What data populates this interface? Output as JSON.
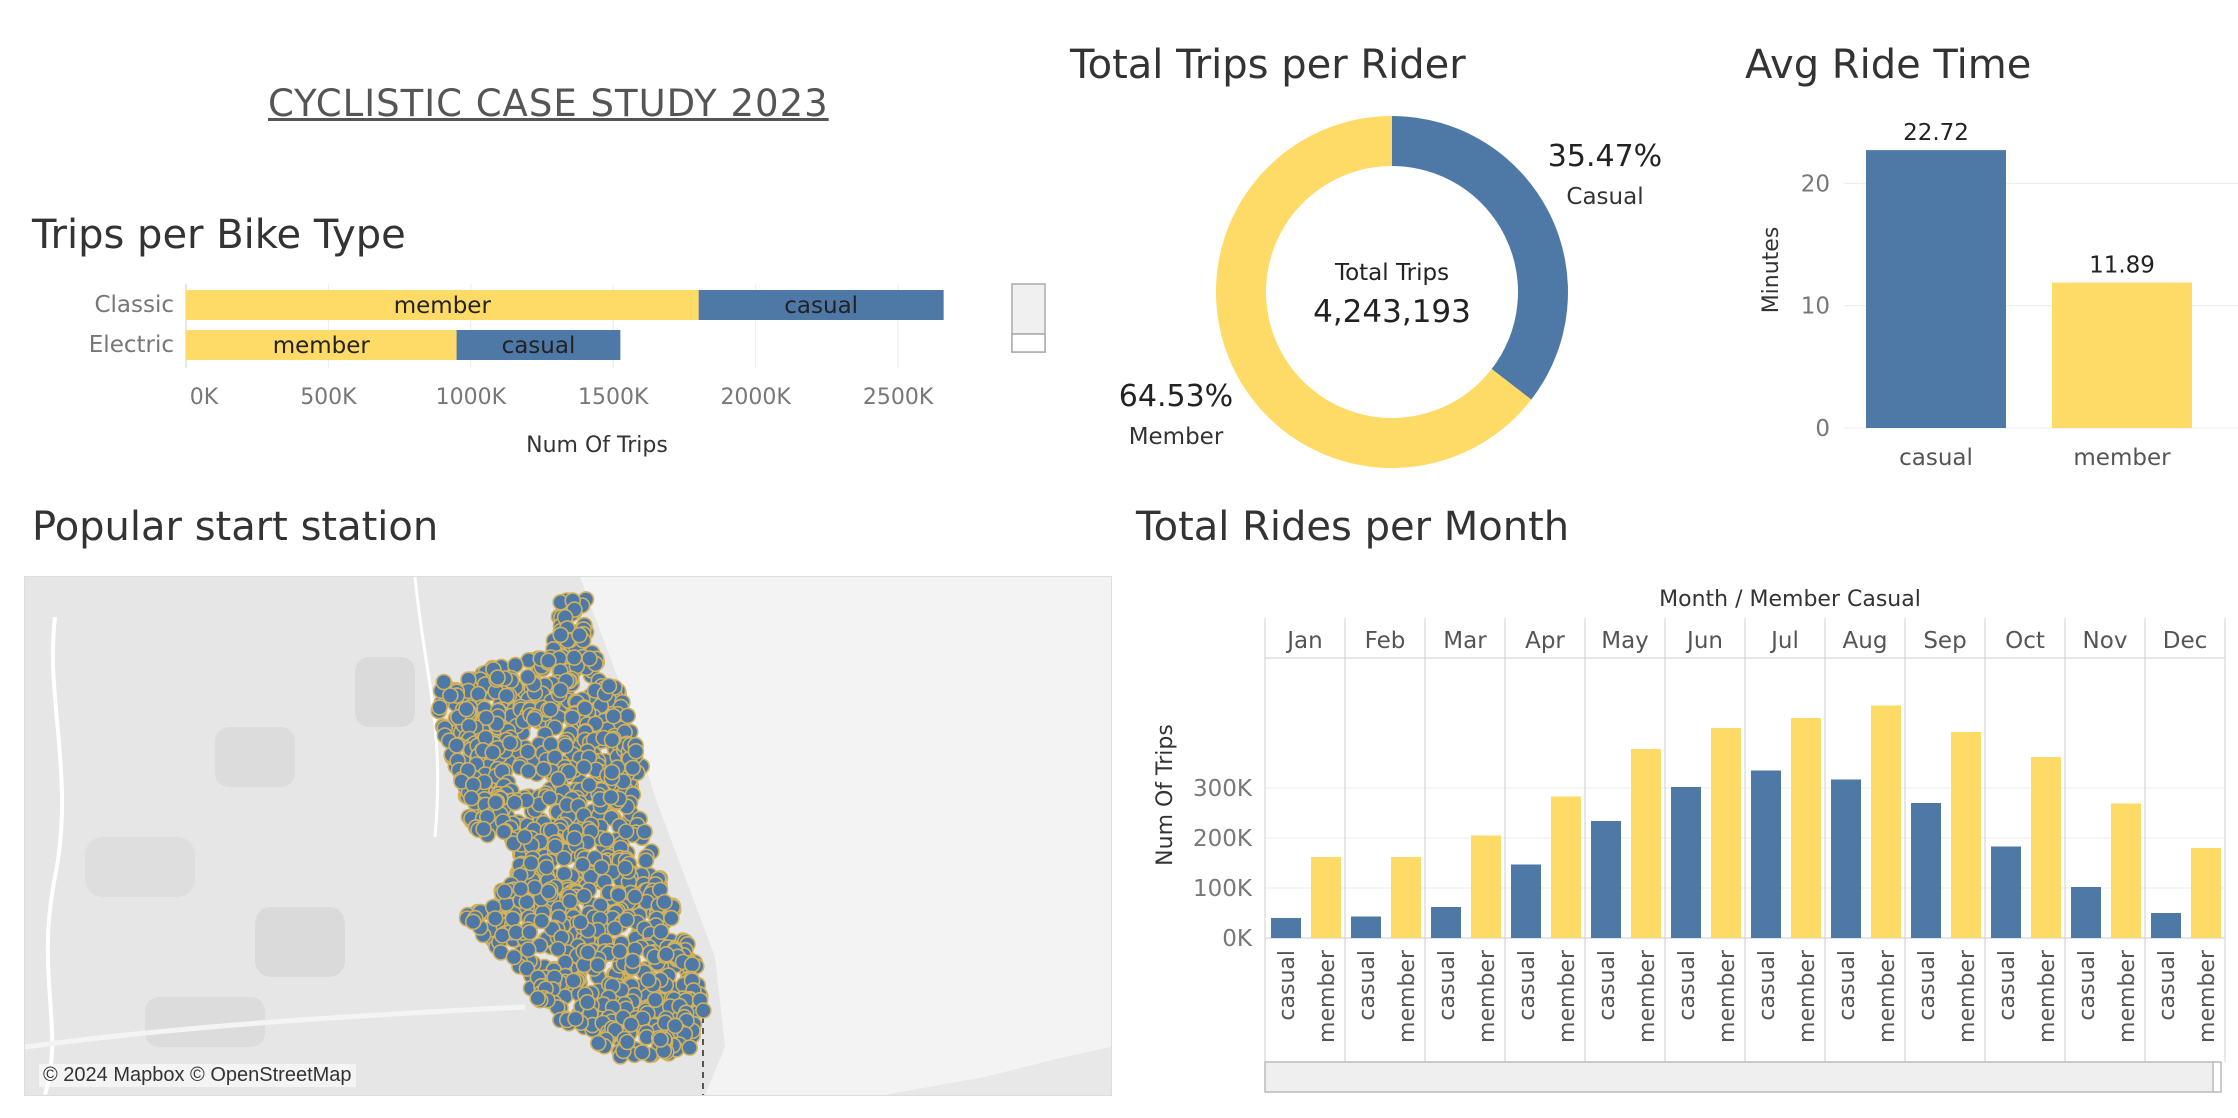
{
  "page_title": "CYCLISTIC CASE STUDY 2023",
  "colors": {
    "member": "#FEDA67",
    "casual": "#4E79A7",
    "grid": "#ececec",
    "axis": "#777777"
  },
  "chart_data": [
    {
      "type": "bar",
      "orientation": "horizontal-stacked",
      "title": "Trips per Bike Type",
      "categories": [
        "Classic",
        "Electric"
      ],
      "series": [
        {
          "name": "member",
          "values": [
            1800000,
            950000
          ]
        },
        {
          "name": "casual",
          "values": [
            860000,
            575000
          ]
        }
      ],
      "xlabel": "Num Of Trips",
      "ylabel": "",
      "xlim": [
        0,
        2900000
      ],
      "ticks": [
        "0K",
        "500K",
        "1000K",
        "1500K",
        "2000K",
        "2500K"
      ],
      "tick_values": [
        0,
        500000,
        1000000,
        1500000,
        2000000,
        2500000
      ]
    },
    {
      "type": "pie",
      "title": "Total Trips per Rider",
      "center_label": "Total Trips",
      "center_value": "4,243,193",
      "slices": [
        {
          "label": "Casual",
          "value": 35.47,
          "display": "35.47%"
        },
        {
          "label": "Member",
          "value": 64.53,
          "display": "64.53%"
        }
      ]
    },
    {
      "type": "bar",
      "title": "Avg Ride Time",
      "categories": [
        "casual",
        "member"
      ],
      "values": [
        22.72,
        11.89
      ],
      "value_labels": [
        "22.72",
        "11.89"
      ],
      "ylabel": "Minutes",
      "ylim": [
        0,
        26
      ],
      "ticks": [
        "0",
        "10",
        "20"
      ],
      "tick_values": [
        0,
        10,
        20
      ]
    },
    {
      "type": "bar",
      "title": "Total Rides per Month",
      "header": "Month / Member Casual",
      "categories": [
        "Jan",
        "Feb",
        "Mar",
        "Apr",
        "May",
        "Jun",
        "Jul",
        "Aug",
        "Sep",
        "Oct",
        "Nov",
        "Dec"
      ],
      "sub_categories": [
        "casual",
        "member"
      ],
      "series": [
        {
          "name": "casual",
          "values": [
            40000,
            43000,
            62000,
            147000,
            234000,
            302000,
            335000,
            317000,
            270000,
            183000,
            102000,
            50000
          ]
        },
        {
          "name": "member",
          "values": [
            162000,
            162000,
            205000,
            283000,
            378000,
            420000,
            440000,
            465000,
            412000,
            362000,
            269000,
            180000
          ]
        }
      ],
      "ylabel": "Num Of Trips",
      "ylim": [
        0,
        560000
      ],
      "ticks": [
        "0K",
        "100K",
        "200K",
        "300K"
      ],
      "tick_values": [
        0,
        100000,
        200000,
        300000
      ]
    }
  ],
  "map": {
    "title": "Popular start station",
    "attribution": "© 2024 Mapbox © OpenStreetMap",
    "marker_color": "#4E79A7",
    "marker_border": "#d4b25a"
  }
}
